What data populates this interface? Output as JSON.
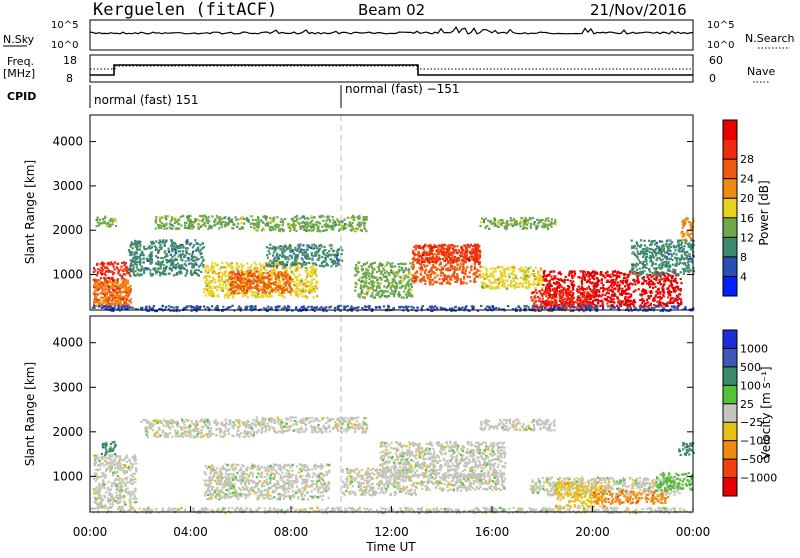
{
  "header": {
    "station": "Kerguelen (fitACF)",
    "beam": "Beam 02",
    "date": "21/Nov/2016"
  },
  "nsky_panel": {
    "left_label": "N.Sky",
    "right_label": "N.Search",
    "left_ticks": [
      "10^5",
      "10^0"
    ],
    "right_ticks": [
      "10^5",
      "10^0"
    ]
  },
  "freq_panel": {
    "left_label_top": "Freq.",
    "left_label_bottom": "[MHz]",
    "left_ticks": [
      "18",
      "8"
    ],
    "right_label": "Nave",
    "right_ticks": [
      "60",
      "0"
    ]
  },
  "cpid_panel": {
    "label": "CPID",
    "segments": [
      {
        "label": "normal (fast) 151",
        "start_hour": 0,
        "end_hour": 10
      },
      {
        "label": "normal (fast) −151",
        "start_hour": 10,
        "end_hour": 24
      }
    ]
  },
  "chart_data": [
    {
      "type": "heatmap",
      "title": "",
      "ylabel": "Slant Range [km]",
      "yticks": [
        "1000",
        "2000",
        "3000",
        "4000"
      ],
      "ylim": [
        200,
        4600
      ],
      "xlim_hours": [
        0,
        24
      ],
      "colorbar": {
        "label": "Power [dB]",
        "ticks": [
          "4",
          "8",
          "12",
          "16",
          "20",
          "24",
          "28"
        ],
        "colors": [
          "#0022ff",
          "#2a4fb3",
          "#3d8a6f",
          "#6fa84a",
          "#e8d21e",
          "#f08a12",
          "#f05a10",
          "#ee2a10",
          "#e60000"
        ]
      }
    },
    {
      "type": "heatmap",
      "title": "",
      "ylabel": "Slant Range [km]",
      "yticks": [
        "1000",
        "2000",
        "3000",
        "4000"
      ],
      "ylim": [
        200,
        4600
      ],
      "xlabel": "Time UT",
      "xticks": [
        "00:00",
        "04:00",
        "08:00",
        "12:00",
        "16:00",
        "20:00",
        "00:00"
      ],
      "xlim_hours": [
        0,
        24
      ],
      "colorbar": {
        "label": "Velocity [m s⁻¹]",
        "ticks": [
          "1000",
          "500",
          "100",
          "25",
          "−25",
          "−100",
          "−500",
          "−1000"
        ],
        "colors": [
          "#1b2fd6",
          "#3a5ab5",
          "#3c8a66",
          "#56c23c",
          "#c4c4bc",
          "#e8c01a",
          "#f08a12",
          "#f04010",
          "#e60000"
        ]
      }
    }
  ],
  "colors": {
    "grey_scatter": "#c4c4bc",
    "axis": "#000000"
  }
}
